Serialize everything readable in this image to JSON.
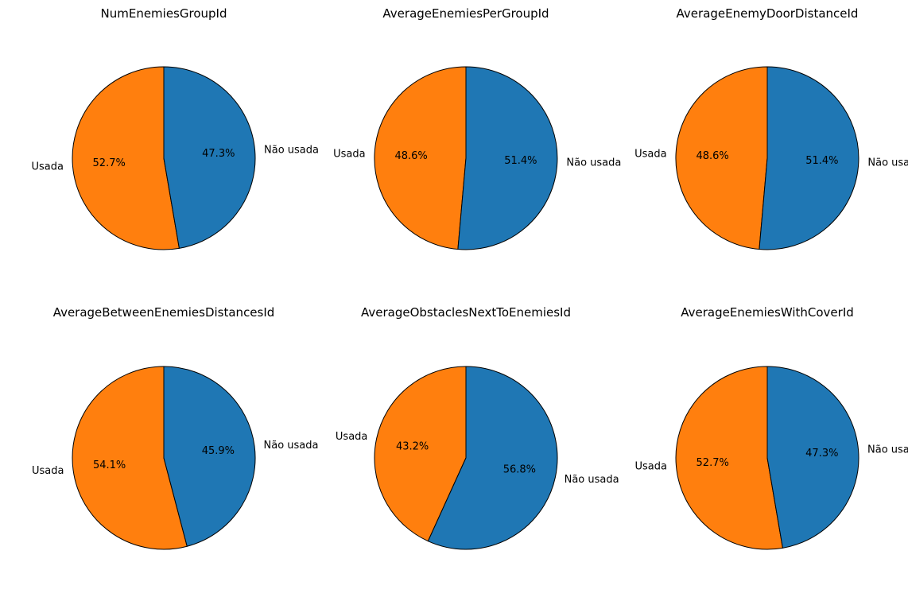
{
  "chart_data": [
    {
      "type": "pie",
      "title": "NumEnemiesGroupId",
      "slices": [
        {
          "label": "Usada",
          "value": 52.7,
          "pct_label": "52.7%",
          "color": "#ff7f0e"
        },
        {
          "label": "Não usada",
          "value": 47.3,
          "pct_label": "47.3%",
          "color": "#1f77b4"
        }
      ]
    },
    {
      "type": "pie",
      "title": "AverageEnemiesPerGroupId",
      "slices": [
        {
          "label": "Usada",
          "value": 48.6,
          "pct_label": "48.6%",
          "color": "#ff7f0e"
        },
        {
          "label": "Não usada",
          "value": 51.4,
          "pct_label": "51.4%",
          "color": "#1f77b4"
        }
      ]
    },
    {
      "type": "pie",
      "title": "AverageEnemyDoorDistanceId",
      "slices": [
        {
          "label": "Usada",
          "value": 48.6,
          "pct_label": "48.6%",
          "color": "#ff7f0e"
        },
        {
          "label": "Não usada",
          "value": 51.4,
          "pct_label": "51.4%",
          "color": "#1f77b4"
        }
      ]
    },
    {
      "type": "pie",
      "title": "AverageBetweenEnemiesDistancesId",
      "slices": [
        {
          "label": "Usada",
          "value": 54.1,
          "pct_label": "54.1%",
          "color": "#ff7f0e"
        },
        {
          "label": "Não usada",
          "value": 45.9,
          "pct_label": "45.9%",
          "color": "#1f77b4"
        }
      ]
    },
    {
      "type": "pie",
      "title": "AverageObstaclesNextToEnemiesId",
      "slices": [
        {
          "label": "Usada",
          "value": 43.2,
          "pct_label": "43.2%",
          "color": "#ff7f0e"
        },
        {
          "label": "Não usada",
          "value": 56.8,
          "pct_label": "56.8%",
          "color": "#1f77b4"
        }
      ]
    },
    {
      "type": "pie",
      "title": "AverageEnemiesWithCoverId",
      "slices": [
        {
          "label": "Usada",
          "value": 52.7,
          "pct_label": "52.7%",
          "color": "#ff7f0e"
        },
        {
          "label": "Não usada",
          "value": 47.3,
          "pct_label": "47.3%",
          "color": "#1f77b4"
        }
      ]
    }
  ]
}
